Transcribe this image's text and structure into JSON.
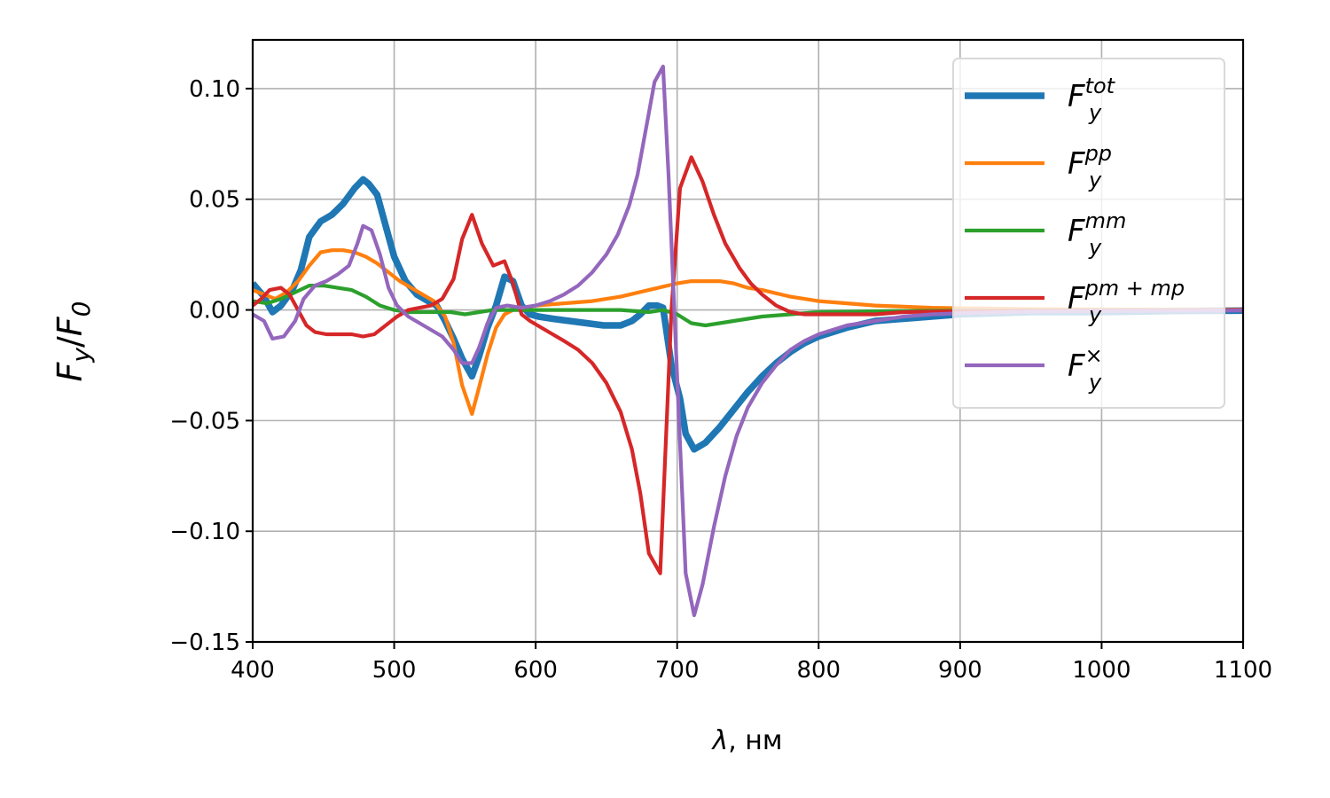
{
  "chart_data": {
    "type": "line",
    "xlabel": {
      "symbol": "λ",
      "unit": ", нм"
    },
    "ylabel": {
      "num": "F",
      "num_sub": "y",
      "den": "F",
      "den_sub": "0"
    },
    "xlim": [
      400,
      1100
    ],
    "ylim": [
      -0.15,
      0.122
    ],
    "xticks": [
      400,
      500,
      600,
      700,
      800,
      900,
      1000,
      1100
    ],
    "yticks": [
      -0.15,
      -0.1,
      -0.05,
      0.0,
      0.05,
      0.1
    ],
    "ytick_labels": [
      "−0.15",
      "−0.10",
      "−0.05",
      "0.00",
      "0.05",
      "0.10"
    ],
    "grid": true,
    "legend_position": "top-right",
    "series": [
      {
        "name": "tot",
        "legend": {
          "base": "F",
          "sub": "y",
          "sup": "tot"
        },
        "color": "#1f77b4",
        "linewidth": "thick",
        "points": [
          [
            400,
            0.012
          ],
          [
            408,
            0.006
          ],
          [
            414,
            -0.001
          ],
          [
            420,
            0.002
          ],
          [
            428,
            0.009
          ],
          [
            434,
            0.018
          ],
          [
            440,
            0.033
          ],
          [
            448,
            0.04
          ],
          [
            456,
            0.043
          ],
          [
            464,
            0.048
          ],
          [
            472,
            0.055
          ],
          [
            478,
            0.059
          ],
          [
            482,
            0.057
          ],
          [
            488,
            0.052
          ],
          [
            494,
            0.038
          ],
          [
            500,
            0.024
          ],
          [
            508,
            0.013
          ],
          [
            516,
            0.007
          ],
          [
            524,
            0.004
          ],
          [
            530,
            0.002
          ],
          [
            536,
            -0.005
          ],
          [
            542,
            -0.013
          ],
          [
            548,
            -0.022
          ],
          [
            555,
            -0.03
          ],
          [
            560,
            -0.021
          ],
          [
            566,
            -0.008
          ],
          [
            572,
            0.002
          ],
          [
            578,
            0.015
          ],
          [
            584,
            0.013
          ],
          [
            590,
            0.002
          ],
          [
            596,
            -0.002
          ],
          [
            602,
            -0.003
          ],
          [
            612,
            -0.004
          ],
          [
            624,
            -0.005
          ],
          [
            636,
            -0.006
          ],
          [
            648,
            -0.007
          ],
          [
            660,
            -0.007
          ],
          [
            668,
            -0.005
          ],
          [
            674,
            -0.002
          ],
          [
            680,
            0.002
          ],
          [
            686,
            0.002
          ],
          [
            690,
            0.001
          ],
          [
            696,
            -0.025
          ],
          [
            702,
            -0.04
          ],
          [
            706,
            -0.056
          ],
          [
            712,
            -0.063
          ],
          [
            720,
            -0.06
          ],
          [
            730,
            -0.053
          ],
          [
            740,
            -0.045
          ],
          [
            750,
            -0.037
          ],
          [
            760,
            -0.03
          ],
          [
            770,
            -0.024
          ],
          [
            780,
            -0.019
          ],
          [
            790,
            -0.015
          ],
          [
            800,
            -0.012
          ],
          [
            820,
            -0.008
          ],
          [
            840,
            -0.005
          ],
          [
            860,
            -0.004
          ],
          [
            880,
            -0.003
          ],
          [
            900,
            -0.002
          ],
          [
            950,
            -0.001
          ],
          [
            1000,
            -0.001
          ],
          [
            1050,
            -0.0005
          ],
          [
            1100,
            -0.0003
          ]
        ]
      },
      {
        "name": "pp",
        "legend": {
          "base": "F",
          "sub": "y",
          "sup": "pp"
        },
        "color": "#ff7f0e",
        "linewidth": "normal",
        "points": [
          [
            400,
            0.009
          ],
          [
            408,
            0.007
          ],
          [
            416,
            0.005
          ],
          [
            424,
            0.008
          ],
          [
            432,
            0.013
          ],
          [
            440,
            0.02
          ],
          [
            448,
            0.026
          ],
          [
            456,
            0.027
          ],
          [
            464,
            0.027
          ],
          [
            472,
            0.026
          ],
          [
            480,
            0.024
          ],
          [
            488,
            0.021
          ],
          [
            496,
            0.017
          ],
          [
            504,
            0.013
          ],
          [
            512,
            0.01
          ],
          [
            520,
            0.007
          ],
          [
            528,
            0.004
          ],
          [
            536,
            -0.003
          ],
          [
            542,
            -0.015
          ],
          [
            548,
            -0.034
          ],
          [
            555,
            -0.047
          ],
          [
            560,
            -0.035
          ],
          [
            566,
            -0.02
          ],
          [
            572,
            -0.008
          ],
          [
            578,
            -0.002
          ],
          [
            584,
            0.0
          ],
          [
            592,
            0.001
          ],
          [
            600,
            0.002
          ],
          [
            620,
            0.003
          ],
          [
            640,
            0.004
          ],
          [
            660,
            0.006
          ],
          [
            680,
            0.009
          ],
          [
            700,
            0.012
          ],
          [
            710,
            0.013
          ],
          [
            720,
            0.013
          ],
          [
            730,
            0.013
          ],
          [
            740,
            0.012
          ],
          [
            750,
            0.01
          ],
          [
            760,
            0.009
          ],
          [
            780,
            0.006
          ],
          [
            800,
            0.004
          ],
          [
            820,
            0.003
          ],
          [
            840,
            0.002
          ],
          [
            860,
            0.0015
          ],
          [
            880,
            0.001
          ],
          [
            900,
            0.0008
          ],
          [
            950,
            0.0004
          ],
          [
            1000,
            0.0002
          ],
          [
            1100,
            0.0001
          ]
        ]
      },
      {
        "name": "mm",
        "legend": {
          "base": "F",
          "sub": "y",
          "sup": "mm"
        },
        "color": "#2ca02c",
        "linewidth": "normal",
        "points": [
          [
            400,
            0.004
          ],
          [
            410,
            0.003
          ],
          [
            420,
            0.005
          ],
          [
            430,
            0.008
          ],
          [
            440,
            0.011
          ],
          [
            450,
            0.011
          ],
          [
            460,
            0.01
          ],
          [
            470,
            0.009
          ],
          [
            480,
            0.006
          ],
          [
            490,
            0.002
          ],
          [
            500,
            0.0
          ],
          [
            510,
            -0.001
          ],
          [
            520,
            -0.001
          ],
          [
            530,
            -0.001
          ],
          [
            540,
            -0.001
          ],
          [
            550,
            -0.002
          ],
          [
            560,
            -0.001
          ],
          [
            570,
            0.0
          ],
          [
            580,
            0.0
          ],
          [
            600,
            0.0
          ],
          [
            620,
            0.0
          ],
          [
            640,
            0.0
          ],
          [
            660,
            0.0
          ],
          [
            680,
            -0.001
          ],
          [
            690,
            0.0
          ],
          [
            700,
            -0.002
          ],
          [
            710,
            -0.006
          ],
          [
            720,
            -0.007
          ],
          [
            730,
            -0.006
          ],
          [
            740,
            -0.005
          ],
          [
            760,
            -0.003
          ],
          [
            780,
            -0.002
          ],
          [
            800,
            -0.001
          ],
          [
            850,
            -0.0005
          ],
          [
            900,
            -0.0003
          ],
          [
            1000,
            -0.0001
          ],
          [
            1100,
            0.0
          ]
        ]
      },
      {
        "name": "pm+mp",
        "legend": {
          "base": "F",
          "sub": "y",
          "sup": "pm + mp"
        },
        "color": "#d62728",
        "linewidth": "normal",
        "points": [
          [
            400,
            0.002
          ],
          [
            406,
            0.005
          ],
          [
            412,
            0.009
          ],
          [
            420,
            0.01
          ],
          [
            426,
            0.007
          ],
          [
            432,
            0.0
          ],
          [
            438,
            -0.007
          ],
          [
            444,
            -0.01
          ],
          [
            452,
            -0.011
          ],
          [
            460,
            -0.011
          ],
          [
            470,
            -0.011
          ],
          [
            478,
            -0.012
          ],
          [
            486,
            -0.011
          ],
          [
            494,
            -0.007
          ],
          [
            502,
            -0.003
          ],
          [
            510,
            0.0
          ],
          [
            518,
            0.001
          ],
          [
            526,
            0.002
          ],
          [
            534,
            0.005
          ],
          [
            542,
            0.014
          ],
          [
            548,
            0.032
          ],
          [
            555,
            0.043
          ],
          [
            562,
            0.03
          ],
          [
            570,
            0.02
          ],
          [
            578,
            0.022
          ],
          [
            584,
            0.012
          ],
          [
            590,
            -0.002
          ],
          [
            596,
            -0.005
          ],
          [
            604,
            -0.008
          ],
          [
            612,
            -0.011
          ],
          [
            620,
            -0.014
          ],
          [
            630,
            -0.018
          ],
          [
            640,
            -0.024
          ],
          [
            650,
            -0.033
          ],
          [
            660,
            -0.046
          ],
          [
            668,
            -0.063
          ],
          [
            674,
            -0.083
          ],
          [
            680,
            -0.11
          ],
          [
            688,
            -0.119
          ],
          [
            692,
            -0.06
          ],
          [
            696,
            0.0
          ],
          [
            702,
            0.055
          ],
          [
            710,
            0.069
          ],
          [
            718,
            0.058
          ],
          [
            726,
            0.043
          ],
          [
            734,
            0.03
          ],
          [
            744,
            0.019
          ],
          [
            752,
            0.012
          ],
          [
            760,
            0.007
          ],
          [
            770,
            0.002
          ],
          [
            780,
            -0.001
          ],
          [
            790,
            -0.002
          ],
          [
            800,
            -0.002
          ],
          [
            820,
            -0.002
          ],
          [
            840,
            -0.002
          ],
          [
            860,
            -0.001
          ],
          [
            900,
            -0.0005
          ],
          [
            1000,
            -0.0002
          ],
          [
            1100,
            0.0
          ]
        ]
      },
      {
        "name": "×",
        "legend": {
          "base": "F",
          "sub": "y",
          "sup": "×"
        },
        "color": "#9467bd",
        "linewidth": "normal",
        "points": [
          [
            400,
            -0.002
          ],
          [
            408,
            -0.005
          ],
          [
            414,
            -0.013
          ],
          [
            422,
            -0.012
          ],
          [
            430,
            -0.005
          ],
          [
            436,
            0.005
          ],
          [
            444,
            0.011
          ],
          [
            452,
            0.013
          ],
          [
            460,
            0.016
          ],
          [
            468,
            0.02
          ],
          [
            474,
            0.03
          ],
          [
            478,
            0.038
          ],
          [
            484,
            0.036
          ],
          [
            490,
            0.025
          ],
          [
            496,
            0.01
          ],
          [
            502,
            0.002
          ],
          [
            510,
            -0.003
          ],
          [
            518,
            -0.006
          ],
          [
            526,
            -0.009
          ],
          [
            534,
            -0.012
          ],
          [
            542,
            -0.018
          ],
          [
            548,
            -0.024
          ],
          [
            555,
            -0.024
          ],
          [
            560,
            -0.017
          ],
          [
            566,
            -0.006
          ],
          [
            572,
            0.001
          ],
          [
            580,
            0.002
          ],
          [
            590,
            0.001
          ],
          [
            600,
            0.002
          ],
          [
            610,
            0.004
          ],
          [
            620,
            0.007
          ],
          [
            630,
            0.011
          ],
          [
            640,
            0.017
          ],
          [
            650,
            0.025
          ],
          [
            658,
            0.034
          ],
          [
            666,
            0.047
          ],
          [
            672,
            0.061
          ],
          [
            678,
            0.082
          ],
          [
            684,
            0.103
          ],
          [
            690,
            0.11
          ],
          [
            694,
            0.06
          ],
          [
            698,
            0.0
          ],
          [
            702,
            -0.06
          ],
          [
            706,
            -0.119
          ],
          [
            712,
            -0.138
          ],
          [
            718,
            -0.124
          ],
          [
            726,
            -0.098
          ],
          [
            734,
            -0.075
          ],
          [
            742,
            -0.057
          ],
          [
            750,
            -0.044
          ],
          [
            760,
            -0.033
          ],
          [
            770,
            -0.025
          ],
          [
            780,
            -0.018
          ],
          [
            790,
            -0.014
          ],
          [
            800,
            -0.011
          ],
          [
            820,
            -0.007
          ],
          [
            840,
            -0.005
          ],
          [
            860,
            -0.003
          ],
          [
            880,
            -0.002
          ],
          [
            900,
            -0.0015
          ],
          [
            950,
            -0.0008
          ],
          [
            1000,
            -0.0005
          ],
          [
            1100,
            -0.0002
          ]
        ]
      }
    ]
  }
}
